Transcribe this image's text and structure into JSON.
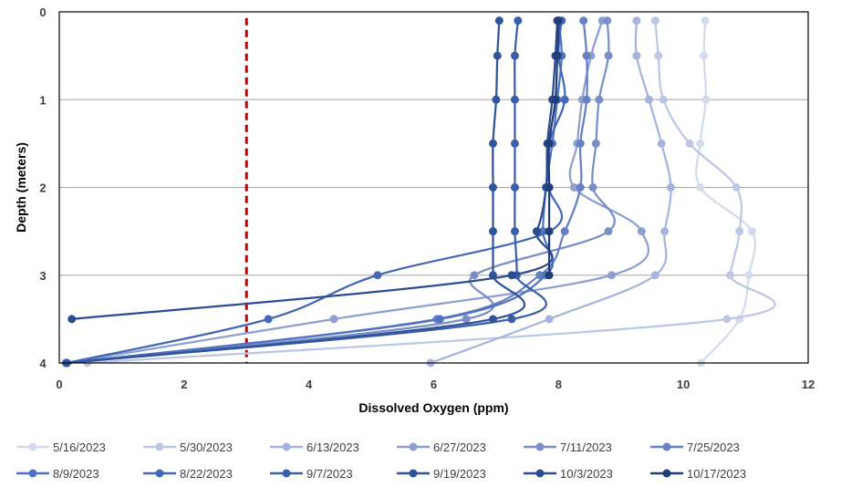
{
  "chart_data": {
    "type": "line",
    "xlabel": "Dissolved Oxygen (ppm)",
    "ylabel": "Depth (meters)",
    "xlim": [
      0,
      12
    ],
    "ylim": [
      0,
      4
    ],
    "y_inverted": true,
    "x_ticks": [
      0,
      2,
      4,
      6,
      8,
      10,
      12
    ],
    "y_ticks": [
      0,
      1,
      2,
      3,
      4
    ],
    "grid": "horizontal",
    "legend": "bottom",
    "reference_line": {
      "x": 3,
      "color": "#C00000",
      "style": "dashed"
    },
    "series": [
      {
        "name": "5/16/2023",
        "color": "#D3DAEC",
        "points": [
          [
            10.35,
            0.1
          ],
          [
            10.33,
            0.5
          ],
          [
            10.36,
            1
          ],
          [
            10.27,
            1.5
          ],
          [
            10.27,
            2
          ],
          [
            11.1,
            2.5
          ],
          [
            11.05,
            3
          ],
          [
            10.9,
            3.5
          ],
          [
            10.28,
            4
          ]
        ]
      },
      {
        "name": "5/30/2023",
        "color": "#BCC7E3",
        "points": [
          [
            9.55,
            0.1
          ],
          [
            9.6,
            0.5
          ],
          [
            9.68,
            1
          ],
          [
            10.1,
            1.5
          ],
          [
            10.85,
            2
          ],
          [
            10.9,
            2.5
          ],
          [
            10.75,
            3
          ],
          [
            10.7,
            3.5
          ],
          [
            0.45,
            4
          ]
        ]
      },
      {
        "name": "6/13/2023",
        "color": "#A4B4DA",
        "points": [
          [
            9.25,
            0.1
          ],
          [
            9.25,
            0.5
          ],
          [
            9.45,
            1
          ],
          [
            9.65,
            1.5
          ],
          [
            9.8,
            2
          ],
          [
            9.7,
            2.5
          ],
          [
            9.55,
            3
          ],
          [
            7.85,
            3.5
          ],
          [
            5.95,
            4
          ]
        ]
      },
      {
        "name": "6/27/2023",
        "color": "#8D9FD0",
        "points": [
          [
            8.7,
            0.1
          ],
          [
            8.52,
            0.5
          ],
          [
            8.38,
            1
          ],
          [
            8.3,
            1.5
          ],
          [
            8.25,
            2
          ],
          [
            9.33,
            2.5
          ],
          [
            8.85,
            3
          ],
          [
            4.4,
            3.5
          ],
          [
            0.1,
            4
          ]
        ]
      },
      {
        "name": "7/11/2023",
        "color": "#7A8FC8",
        "points": [
          [
            8.78,
            0.1
          ],
          [
            8.8,
            0.5
          ],
          [
            8.65,
            1
          ],
          [
            8.6,
            1.5
          ],
          [
            8.55,
            2
          ],
          [
            8.8,
            2.5
          ],
          [
            6.65,
            3
          ],
          [
            6.52,
            3.5
          ],
          [
            0.12,
            4
          ]
        ]
      },
      {
        "name": "7/25/2023",
        "color": "#6680C2",
        "points": [
          [
            8.4,
            0.1
          ],
          [
            8.45,
            0.5
          ],
          [
            8.45,
            1
          ],
          [
            8.35,
            1.5
          ],
          [
            8.35,
            2
          ],
          [
            8.1,
            2.5
          ],
          [
            7.7,
            3
          ],
          [
            6.05,
            3.5
          ],
          [
            0.12,
            4
          ]
        ]
      },
      {
        "name": "8/9/2023",
        "color": "#4F73C0",
        "points": [
          [
            8.0,
            0.1
          ],
          [
            8.05,
            0.5
          ],
          [
            7.98,
            1
          ],
          [
            7.9,
            1.5
          ],
          [
            7.8,
            2
          ],
          [
            7.75,
            2.5
          ],
          [
            7.8,
            3
          ],
          [
            6.1,
            3.5
          ],
          [
            0.12,
            4
          ]
        ]
      },
      {
        "name": "8/22/2023",
        "color": "#4468B5",
        "points": [
          [
            8.05,
            0.1
          ],
          [
            8.0,
            0.5
          ],
          [
            8.1,
            1
          ],
          [
            7.85,
            1.5
          ],
          [
            7.85,
            2
          ],
          [
            7.85,
            2.5
          ],
          [
            5.1,
            3
          ],
          [
            3.35,
            3.5
          ],
          [
            0.12,
            4
          ]
        ]
      },
      {
        "name": "9/7/2023",
        "color": "#3A5EA8",
        "points": [
          [
            7.35,
            0.1
          ],
          [
            7.3,
            0.5
          ],
          [
            7.3,
            1
          ],
          [
            7.3,
            1.5
          ],
          [
            7.3,
            2
          ],
          [
            7.3,
            2.5
          ],
          [
            7.33,
            3
          ],
          [
            7.25,
            3.5
          ],
          [
            0.12,
            4
          ]
        ]
      },
      {
        "name": "9/19/2023",
        "color": "#31539A",
        "points": [
          [
            7.05,
            0.1
          ],
          [
            7.02,
            0.5
          ],
          [
            7.0,
            1
          ],
          [
            6.95,
            1.5
          ],
          [
            6.95,
            2
          ],
          [
            6.95,
            2.5
          ],
          [
            6.95,
            3
          ],
          [
            6.95,
            3.5
          ],
          [
            0.12,
            4
          ]
        ]
      },
      {
        "name": "10/3/2023",
        "color": "#2B4C8F",
        "points": [
          [
            7.98,
            0.1
          ],
          [
            7.95,
            0.5
          ],
          [
            7.9,
            1
          ],
          [
            7.82,
            1.5
          ],
          [
            7.8,
            2
          ],
          [
            7.65,
            2.5
          ],
          [
            7.25,
            3
          ],
          [
            0.2,
            3.5
          ]
        ]
      },
      {
        "name": "10/17/2023",
        "color": "#203D78",
        "points": [
          [
            8.0,
            0.1
          ],
          [
            7.98,
            0.5
          ],
          [
            7.95,
            1
          ],
          [
            7.85,
            1.5
          ],
          [
            7.85,
            2
          ],
          [
            7.85,
            2.5
          ],
          [
            7.85,
            3
          ]
        ]
      }
    ]
  }
}
